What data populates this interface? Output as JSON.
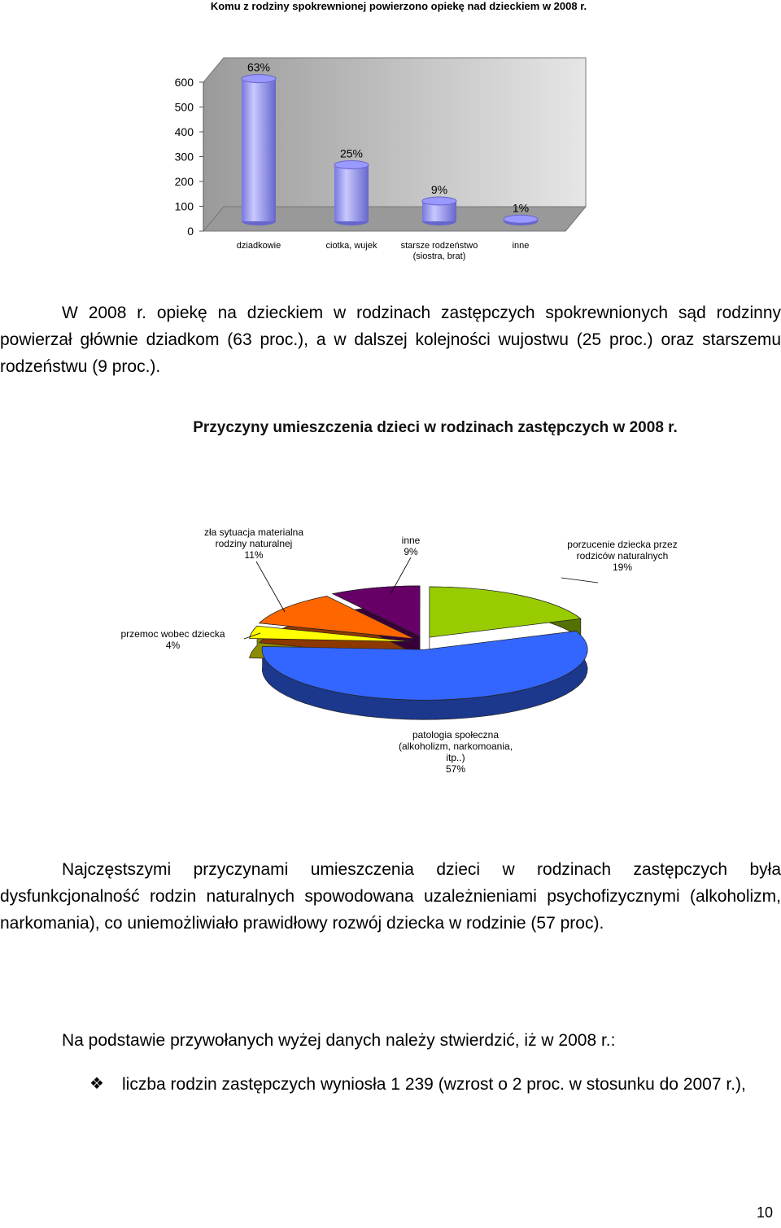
{
  "chart_data": [
    {
      "type": "bar",
      "title": "Komu z rodziny spokrewnionej powierzono opiekę nad dzieckiem w 2008 r.",
      "categories": [
        "dziadkowie",
        "ciotka, wujek",
        "starsze rodzeństwo (siostra, brat)",
        "inne"
      ],
      "values": [
        575,
        228,
        82,
        9
      ],
      "annotations": [
        "63%",
        "25%",
        "9%",
        "1%"
      ],
      "color": "#9999ff",
      "ylim": [
        0,
        600
      ],
      "yticks": [
        0,
        100,
        200,
        300,
        400,
        500,
        600
      ],
      "grid": false
    },
    {
      "type": "pie",
      "title": "Przyczyny umieszczenia dzieci w rodzinach zastępczych w 2008 r.",
      "categories": [
        "porzucenie dziecka przez rodziców naturalnych",
        "patologia społeczna (alkoholizm, narkomoania, itp..)",
        "przemoc wobec dziecka",
        "zła sytuacja materialna rodziny naturalnej",
        "inne"
      ],
      "values": [
        19,
        57,
        4,
        11,
        9
      ],
      "value_labels": [
        "19%",
        "57%",
        "4%",
        "11%",
        "9%"
      ],
      "colors": [
        "#99cc00",
        "#3366ff",
        "#ffff00",
        "#ff6600",
        "#660066"
      ]
    }
  ],
  "paragraphs": [
    "W 2008 r. opiekę na dzieckiem w rodzinach zastępczych spokrewnionych sąd rodzinny powierzał głównie dziadkom (63 proc.), a w dalszej kolejności wujostwu (25 proc.) oraz starszemu rodzeństwu (9 proc.).",
    "Najczęstszymi przyczynami umieszczenia dzieci w rodzinach zastępczych była dysfunkcjonalność rodzin naturalnych spowodowana uzależnieniami psychofizycznymi (alkoholizm, narkomania), co uniemożliwiało prawidłowy rozwój dziecka w rodzinie (57 proc).",
    "Na podstawie przywołanych wyżej danych należy stwierdzić, iż w 2008 r.:"
  ],
  "bullets": [
    "liczba rodzin zastępczych wyniosła 1 239 (wzrost o 2 proc. w stosunku do 2007 r.),"
  ],
  "page_number": "10"
}
